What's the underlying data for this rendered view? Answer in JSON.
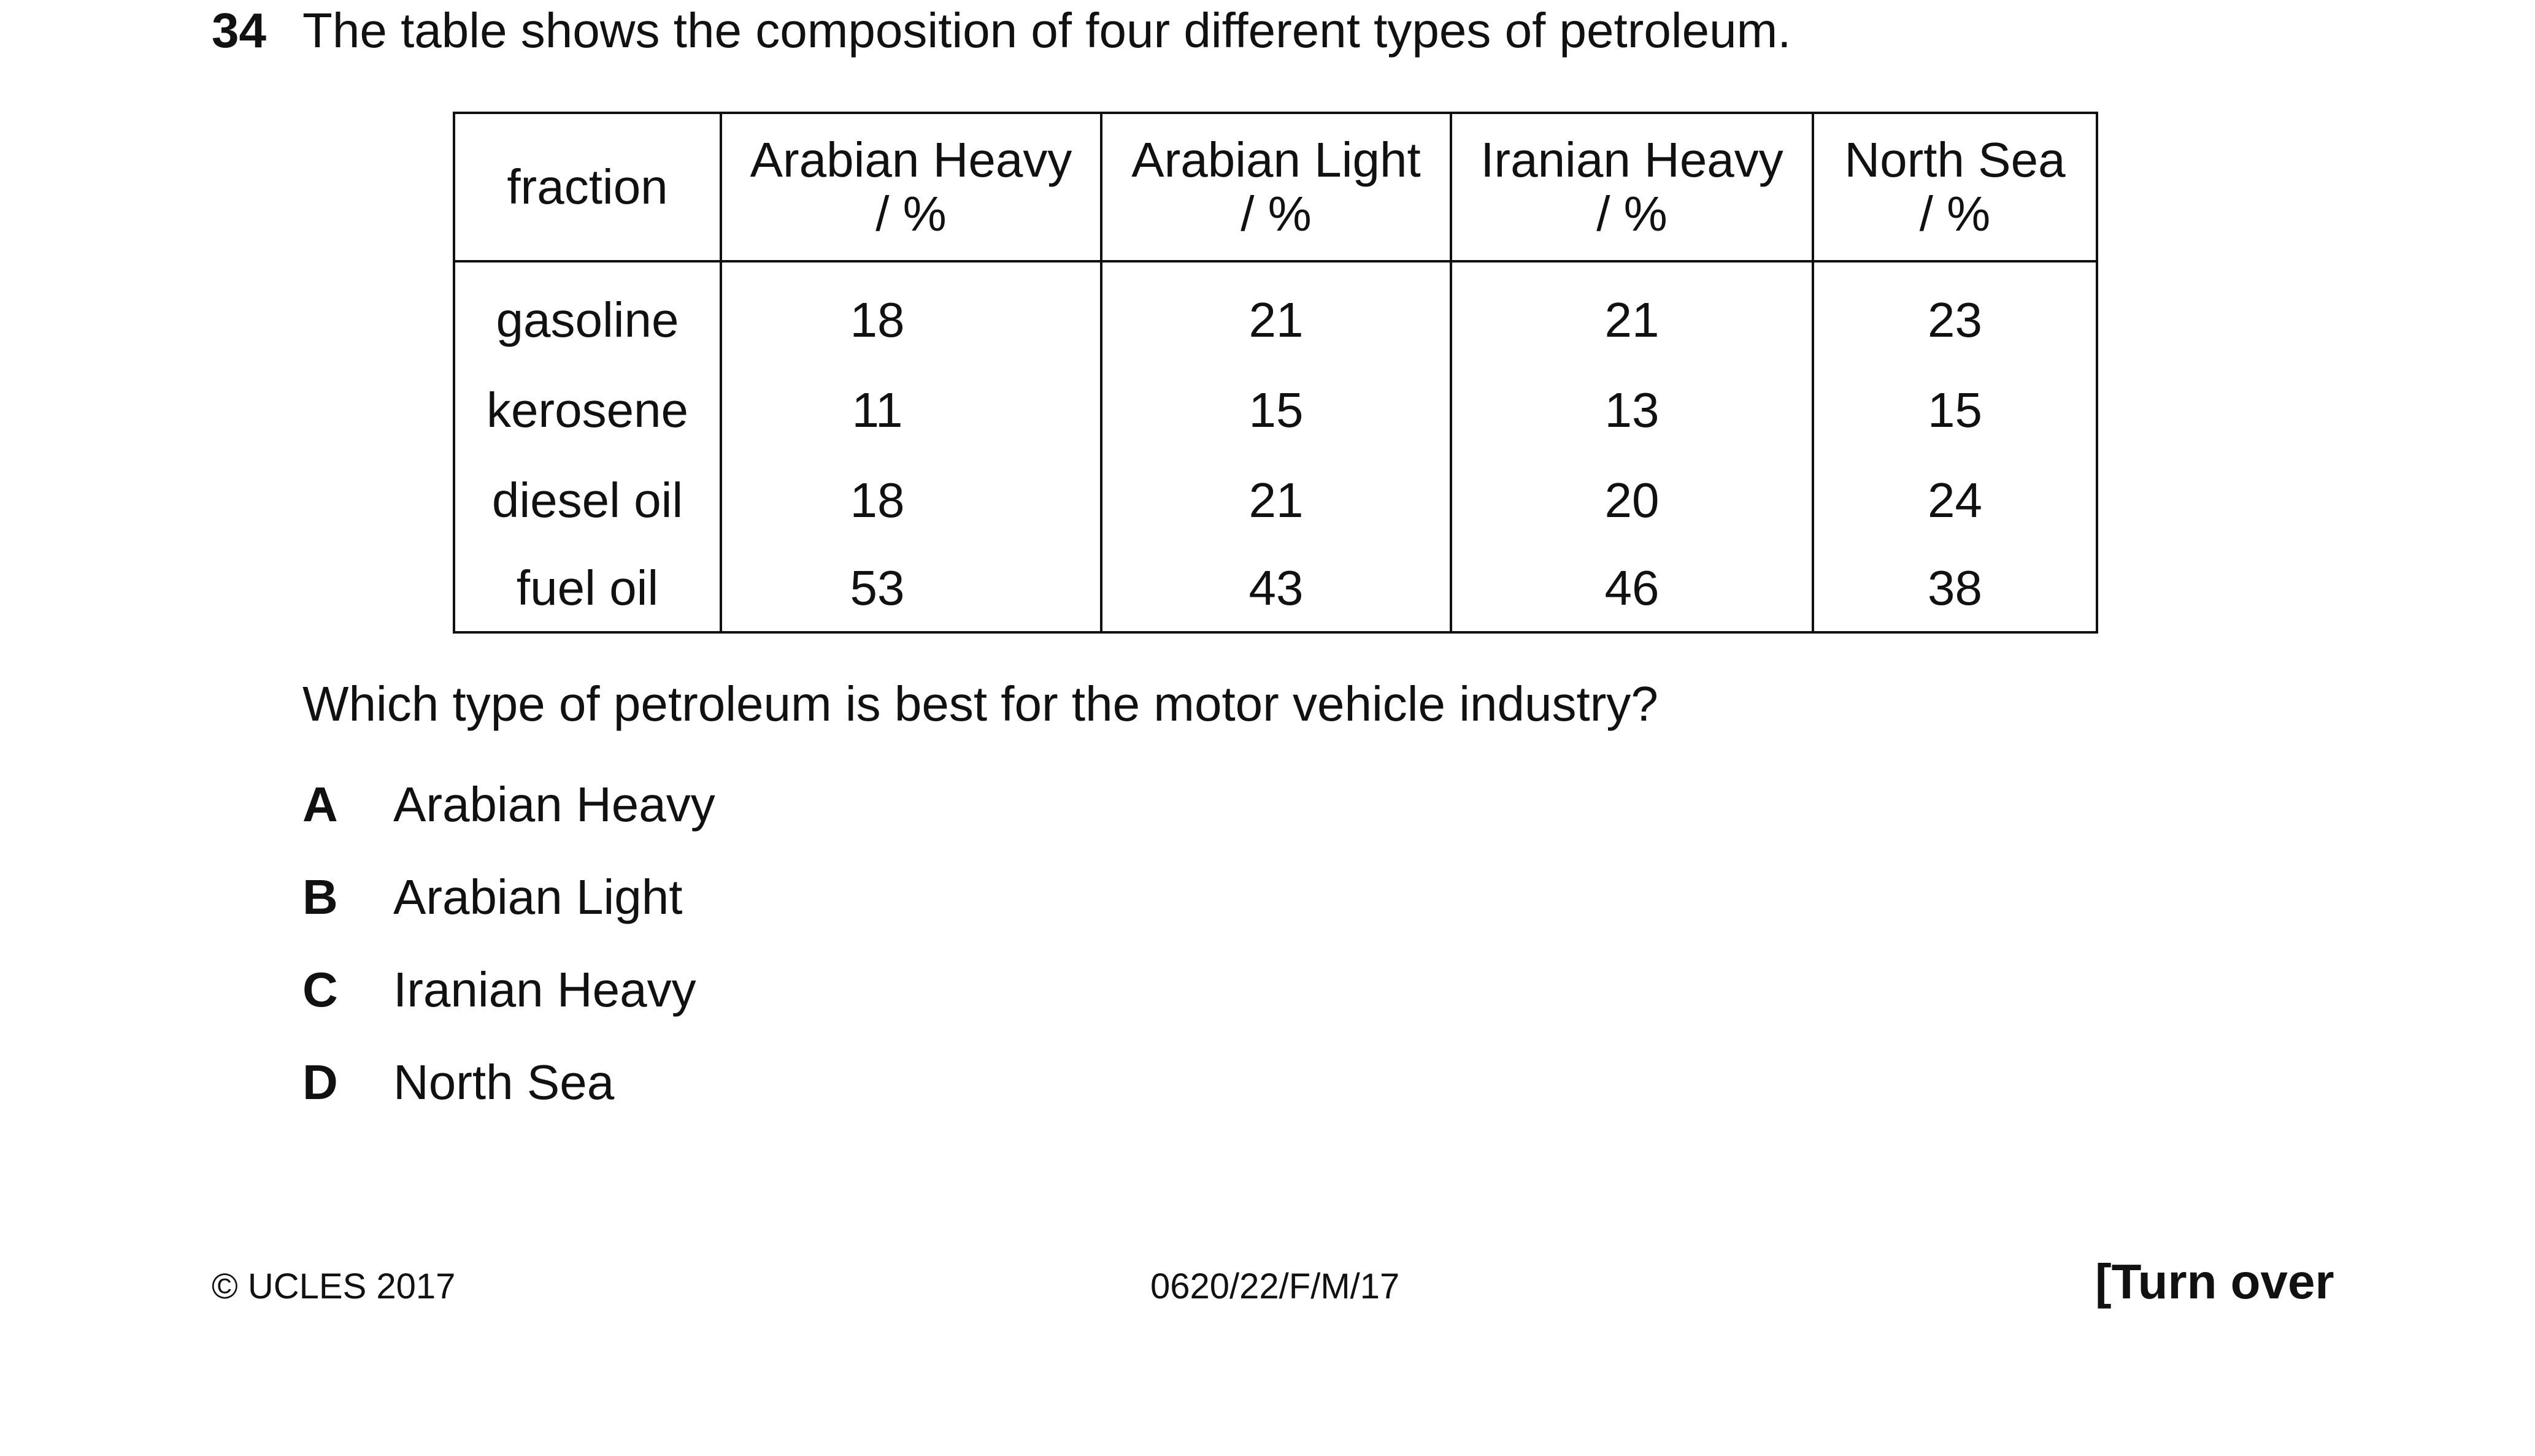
{
  "question": {
    "number": "34",
    "stem": "The table shows the composition of four different types of petroleum.",
    "prompt": "Which type of petroleum is best for the motor vehicle industry?"
  },
  "table": {
    "header": {
      "fraction": "fraction",
      "columns": [
        {
          "name": "Arabian Heavy",
          "unit": "/ %"
        },
        {
          "name": "Arabian Light",
          "unit": "/ %"
        },
        {
          "name": "Iranian Heavy",
          "unit": "/ %"
        },
        {
          "name": "North Sea",
          "unit": "/ %"
        }
      ]
    },
    "rows": [
      {
        "fraction": "gasoline",
        "values": [
          "18",
          "21",
          "21",
          "23"
        ]
      },
      {
        "fraction": "kerosene",
        "values": [
          "11",
          "15",
          "13",
          "15"
        ]
      },
      {
        "fraction": "diesel oil",
        "values": [
          "18",
          "21",
          "20",
          "24"
        ]
      },
      {
        "fraction": "fuel oil",
        "values": [
          "53",
          "43",
          "46",
          "38"
        ]
      }
    ]
  },
  "options": [
    {
      "letter": "A",
      "text": "Arabian Heavy"
    },
    {
      "letter": "B",
      "text": "Arabian Light"
    },
    {
      "letter": "C",
      "text": "Iranian Heavy"
    },
    {
      "letter": "D",
      "text": "North Sea"
    }
  ],
  "footer": {
    "copyright": "© UCLES 2017",
    "code": "0620/22/F/M/17",
    "turn_over": "[Turn over"
  }
}
